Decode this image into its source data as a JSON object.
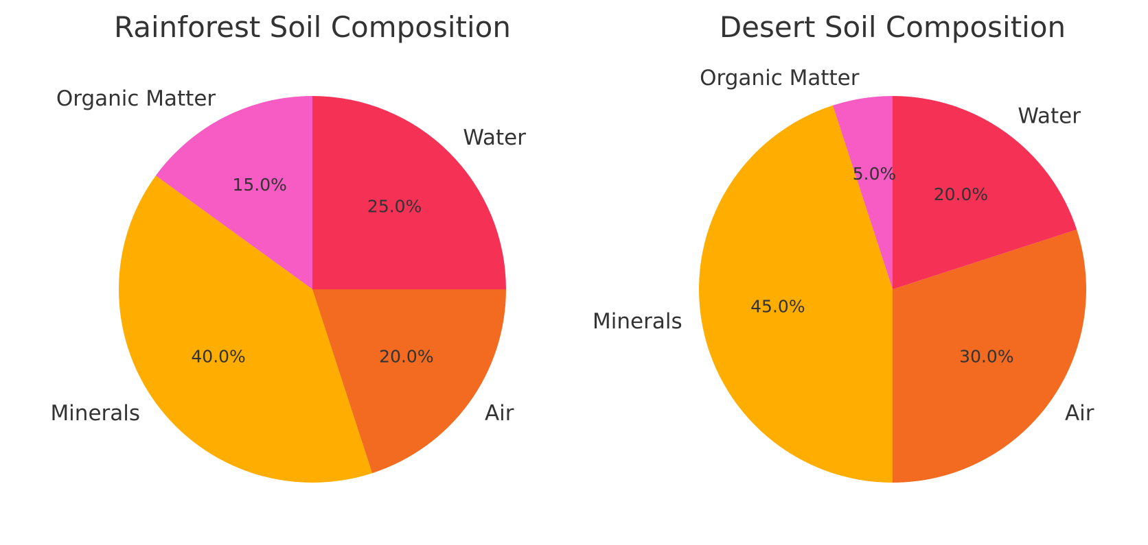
{
  "chart_data": [
    {
      "type": "pie",
      "title": "Rainforest Soil Composition",
      "categories": [
        "Organic Matter",
        "Minerals",
        "Air",
        "Water"
      ],
      "values": [
        15,
        40,
        20,
        25
      ],
      "value_labels": [
        "15.0%",
        "40.0%",
        "20.0%",
        "25.0%"
      ],
      "colors": [
        "#f75bc4",
        "#ffae00",
        "#f26b21",
        "#f53256"
      ],
      "start_angle": 90,
      "direction": "counterclockwise",
      "legend": "none"
    },
    {
      "type": "pie",
      "title": "Desert Soil Composition",
      "categories": [
        "Organic Matter",
        "Minerals",
        "Air",
        "Water"
      ],
      "values": [
        5,
        45,
        30,
        20
      ],
      "value_labels": [
        "5.0%",
        "45.0%",
        "30.0%",
        "20.0%"
      ],
      "colors": [
        "#f75bc4",
        "#ffae00",
        "#f26b21",
        "#f53256"
      ],
      "start_angle": 90,
      "direction": "counterclockwise",
      "legend": "none"
    }
  ]
}
